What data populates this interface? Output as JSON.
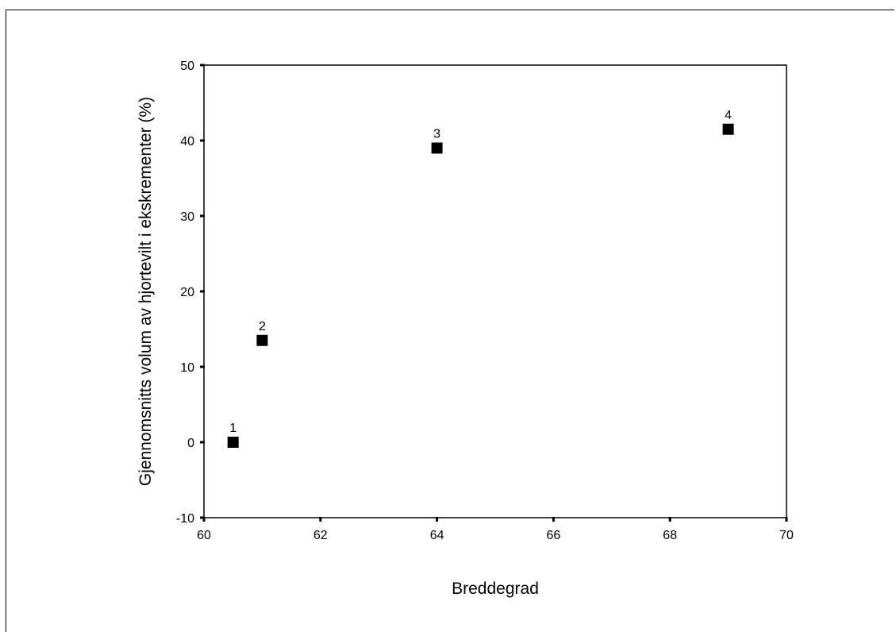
{
  "chart_data": {
    "type": "scatter",
    "xlabel": "Breddegrad",
    "ylabel": "Gjennomsnitts volum av hjortevilt i ekskrementer (%)",
    "xlim": [
      60,
      70
    ],
    "ylim": [
      -10,
      50
    ],
    "x_ticks": [
      60,
      62,
      64,
      66,
      68,
      70
    ],
    "y_ticks": [
      -10,
      0,
      10,
      20,
      30,
      40,
      50
    ],
    "grid": false,
    "points": [
      {
        "label": "1",
        "x": 60.5,
        "y": 0
      },
      {
        "label": "2",
        "x": 61.0,
        "y": 13.5
      },
      {
        "label": "3",
        "x": 64.0,
        "y": 39
      },
      {
        "label": "4",
        "x": 69.0,
        "y": 41.5
      }
    ],
    "colors": {
      "marker": "#000000",
      "axes": "#000000",
      "background": "#ffffff"
    }
  }
}
